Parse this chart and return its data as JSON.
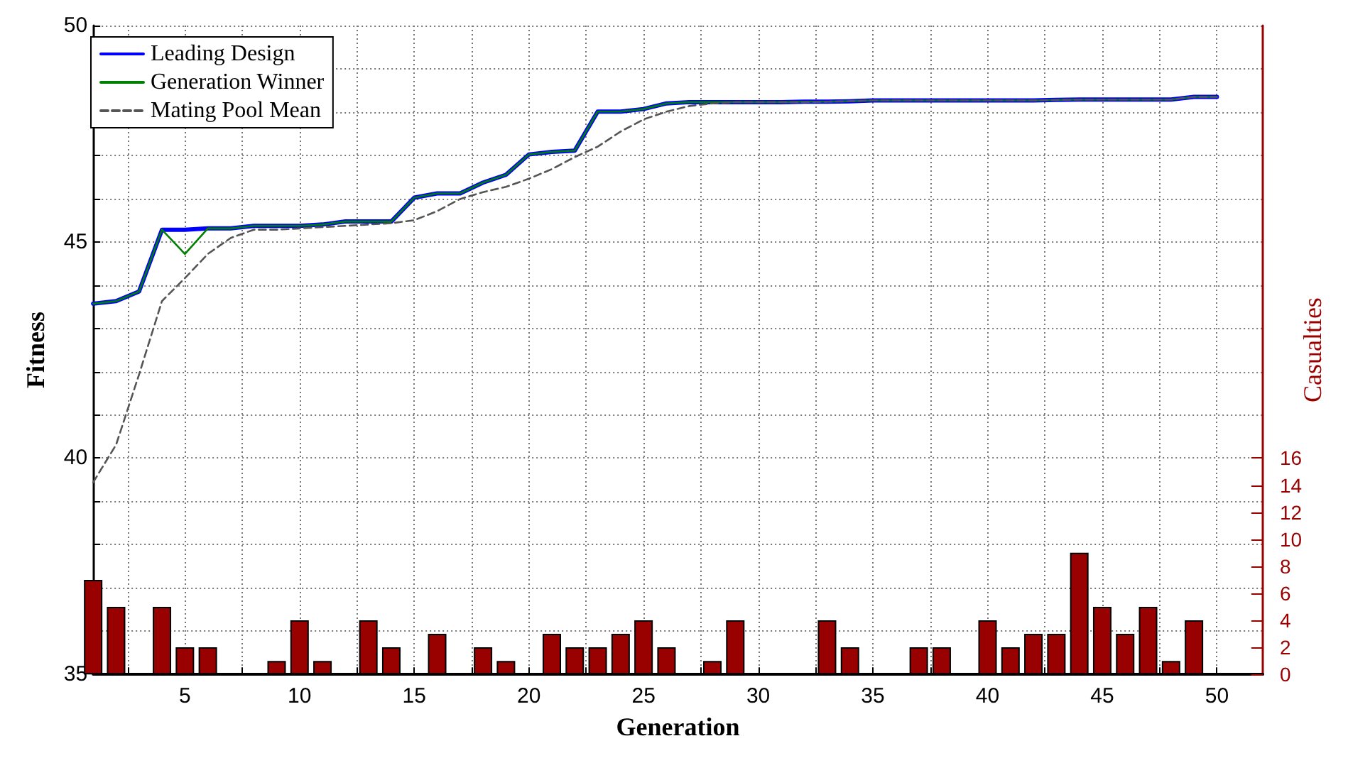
{
  "chart_data": {
    "type": "line",
    "xlabel": "Generation",
    "ylabel": "Fitness",
    "y2label": "Casualties",
    "x": [
      1,
      2,
      3,
      4,
      5,
      6,
      7,
      8,
      9,
      10,
      11,
      12,
      13,
      14,
      15,
      16,
      17,
      18,
      19,
      20,
      21,
      22,
      23,
      24,
      25,
      26,
      27,
      28,
      29,
      30,
      31,
      32,
      33,
      34,
      35,
      36,
      37,
      38,
      39,
      40,
      41,
      42,
      43,
      44,
      45,
      46,
      47,
      48,
      49,
      50
    ],
    "series": [
      {
        "name": "Leading Design",
        "color": "#0000ff",
        "line_style": "solid",
        "values": [
          43.57,
          43.63,
          43.85,
          45.28,
          45.28,
          45.31,
          45.31,
          45.37,
          45.37,
          45.37,
          45.4,
          45.47,
          45.47,
          45.47,
          46.02,
          46.12,
          46.12,
          46.37,
          46.55,
          47.02,
          47.08,
          47.11,
          48.01,
          48.01,
          48.07,
          48.2,
          48.23,
          48.23,
          48.23,
          48.23,
          48.23,
          48.24,
          48.24,
          48.25,
          48.27,
          48.27,
          48.27,
          48.27,
          48.27,
          48.27,
          48.27,
          48.27,
          48.28,
          48.29,
          48.29,
          48.29,
          48.29,
          48.29,
          48.35,
          48.35
        ]
      },
      {
        "name": "Generation Winner",
        "color": "#008000",
        "line_style": "solid",
        "values": [
          43.57,
          43.63,
          43.85,
          45.28,
          44.72,
          45.31,
          45.31,
          45.37,
          45.37,
          45.37,
          45.4,
          45.47,
          45.47,
          45.47,
          46.02,
          46.12,
          46.12,
          46.37,
          46.55,
          47.02,
          47.08,
          47.11,
          48.01,
          48.01,
          48.07,
          48.2,
          48.23,
          48.23,
          48.23,
          48.23,
          48.23,
          48.24,
          48.24,
          48.25,
          48.27,
          48.27,
          48.27,
          48.27,
          48.27,
          48.27,
          48.27,
          48.27,
          48.28,
          48.29,
          48.29,
          48.29,
          48.29,
          48.29,
          48.35,
          48.35
        ]
      },
      {
        "name": "Mating Pool Mean",
        "color": "#555555",
        "line_style": "dashed",
        "values": [
          39.44,
          40.31,
          41.93,
          43.63,
          44.16,
          44.72,
          45.09,
          45.28,
          45.28,
          45.31,
          45.34,
          45.37,
          45.4,
          45.43,
          45.5,
          45.71,
          45.99,
          46.15,
          46.27,
          46.46,
          46.68,
          46.96,
          47.2,
          47.55,
          47.83,
          48.01,
          48.14,
          48.2,
          48.23,
          48.23,
          48.23,
          48.23,
          48.24,
          48.25,
          48.27,
          48.27,
          48.27,
          48.27,
          48.27,
          48.27,
          48.27,
          48.27,
          48.28,
          48.29,
          48.29,
          48.29,
          48.29,
          48.29,
          48.35,
          48.35
        ]
      },
      {
        "type": "bar",
        "axis": "y2",
        "color": "#990000",
        "values": [
          7,
          5,
          0,
          5,
          2,
          2,
          0,
          0,
          1,
          4,
          1,
          0,
          4,
          2,
          0,
          3,
          0,
          2,
          1,
          0,
          3,
          2,
          2,
          3,
          4,
          2,
          0,
          1,
          4,
          0,
          0,
          0,
          4,
          2,
          0,
          0,
          2,
          2,
          0,
          4,
          2,
          3,
          3,
          9,
          5,
          3,
          5,
          1,
          4,
          0
        ]
      }
    ],
    "xlim": [
      1,
      52
    ],
    "xticks": [
      {
        "value": 2.5,
        "label": null
      },
      5,
      {
        "value": 7.5,
        "label": null
      },
      10,
      {
        "value": 12.5,
        "label": null
      },
      15,
      {
        "value": 17.5,
        "label": null
      },
      20,
      {
        "value": 22.5,
        "label": null
      },
      25,
      {
        "value": 27.5,
        "label": null
      },
      30,
      {
        "value": 32.5,
        "label": null
      },
      35,
      {
        "value": 37.5,
        "label": null
      },
      40,
      {
        "value": 42.5,
        "label": null
      },
      45,
      {
        "value": 47.5,
        "label": null
      },
      50
    ],
    "ylim": [
      35,
      50
    ],
    "yticks": [
      35,
      {
        "value": 36,
        "label": null
      },
      {
        "value": 37,
        "label": null
      },
      {
        "value": 38,
        "label": null
      },
      {
        "value": 39,
        "label": null
      },
      40,
      {
        "value": 41,
        "label": null
      },
      {
        "value": 42,
        "label": null
      },
      {
        "value": 43,
        "label": null
      },
      {
        "value": 44,
        "label": null
      },
      45,
      {
        "value": 46,
        "label": null
      },
      {
        "value": 47,
        "label": null
      },
      {
        "value": 48,
        "label": null
      },
      {
        "value": 49,
        "label": null
      },
      50
    ],
    "y2lim": [
      0,
      48
    ],
    "y2ticks": [
      0,
      2,
      4,
      6,
      8,
      10,
      12,
      14,
      16
    ],
    "grid": true,
    "legend": "top left",
    "marker": "none"
  }
}
